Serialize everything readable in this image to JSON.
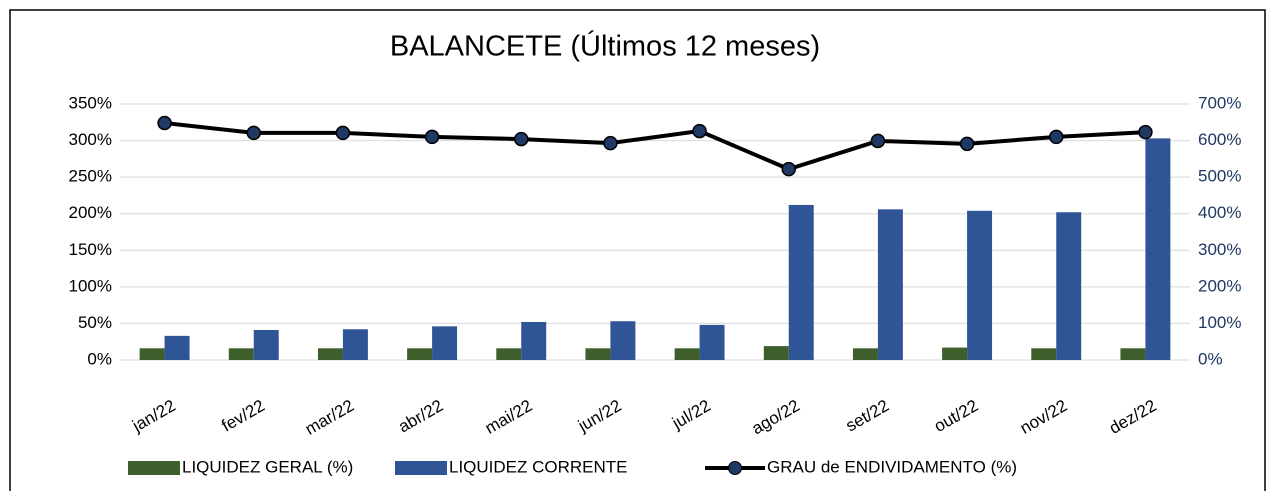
{
  "chart_data": {
    "type": "bar_line",
    "title": "BALANCETE    (Últimos 12 meses)",
    "categories": [
      "jan/22",
      "fev/22",
      "mar/22",
      "abr/22",
      "mai/22",
      "jun/22",
      "jul/22",
      "ago/22",
      "set/22",
      "out/22",
      "nov/22",
      "dez/22"
    ],
    "series": [
      {
        "name": "LIQUIDEZ GERAL  (%)",
        "type": "bar",
        "color": "#3e5e2b",
        "values": [
          16,
          16,
          16,
          16,
          16,
          16,
          16,
          19,
          16,
          17,
          16,
          16
        ]
      },
      {
        "name": "LIQUIDEZ CORRENTE",
        "type": "bar",
        "color": "#2f5597",
        "values": [
          33,
          41,
          42,
          46,
          52,
          53,
          48,
          212,
          206,
          204,
          202,
          303
        ]
      },
      {
        "name": "GRAU de ENDIVIDAMENTO  (%)",
        "type": "line",
        "axis": "y2",
        "color": "#000000",
        "marker_color": "#1f3864",
        "values": [
          648,
          621,
          621,
          610,
          604,
          593,
          626,
          522,
          599,
          591,
          610,
          623
        ]
      }
    ],
    "ylim": [
      0,
      350
    ],
    "yticks": [
      {
        "value": 0,
        "label": "0%"
      },
      {
        "value": 50,
        "label": "50%"
      },
      {
        "value": 100,
        "label": "100%"
      },
      {
        "value": 150,
        "label": "150%"
      },
      {
        "value": 200,
        "label": "200%"
      },
      {
        "value": 250,
        "label": "250%"
      },
      {
        "value": 300,
        "label": "300%"
      },
      {
        "value": 350,
        "label": "350%"
      }
    ],
    "y2lim": [
      0,
      700
    ],
    "y2ticks": [
      {
        "value": 0,
        "label": "0%"
      },
      {
        "value": 100,
        "label": "100%"
      },
      {
        "value": 200,
        "label": "200%"
      },
      {
        "value": 300,
        "label": "300%"
      },
      {
        "value": 400,
        "label": "400%"
      },
      {
        "value": 500,
        "label": "500%"
      },
      {
        "value": 600,
        "label": "600%"
      },
      {
        "value": 700,
        "label": "700%"
      }
    ],
    "grid": true
  }
}
